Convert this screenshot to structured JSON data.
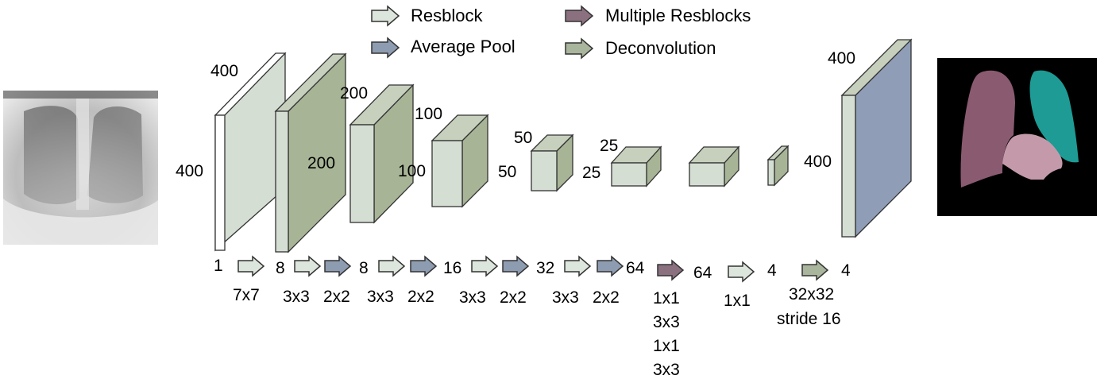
{
  "legend": {
    "resblock": "Resblock",
    "average_pool": "Average Pool",
    "multiple_resblocks": "Multiple Resblocks",
    "deconvolution": "Deconvolution"
  },
  "input_image": {
    "description": "chest x-ray"
  },
  "output_image": {
    "description": "segmentation mask"
  },
  "block_labels": {
    "b1_height": "400",
    "b1_depth": "400",
    "b2_height": "200",
    "b3_depth": "200",
    "b4_depth": "100",
    "b4_height": "100",
    "b5_depth": "50",
    "b5_height": "50",
    "b6_depth": "25",
    "b6_height": "25",
    "out_depth": "400",
    "out_height": "400"
  },
  "channels": {
    "c1": "1",
    "c2": "8",
    "c3": "8",
    "c4": "16",
    "c5": "32",
    "c6": "64",
    "c7": "64",
    "c8": "4",
    "c9": "4"
  },
  "kernels": {
    "k1": "7x7",
    "k2": "3x3",
    "k3": "2x2",
    "k4": "3x3",
    "k5": "2x2",
    "k6": "3x3",
    "k7": "2x2",
    "k8": "3x3",
    "k9": "2x2",
    "k10": "1x1",
    "k11": "3x3",
    "k12": "1x1",
    "k13": "3x3",
    "k14": "1x1",
    "k15": "32x32",
    "k16": "stride 16"
  },
  "colors": {
    "resblock": "#dde6dc",
    "average_pool": "#8e9cb1",
    "multiple_resblocks": "#8b7180",
    "deconvolution": "#a9b59c",
    "feature_light": "#d5ded3",
    "feature_green": "#a7b496",
    "output_blue": "#8f9db7",
    "lung_left": "#8a5a70",
    "lung_right": "#1d9b94",
    "heart": "#c49aaa"
  }
}
